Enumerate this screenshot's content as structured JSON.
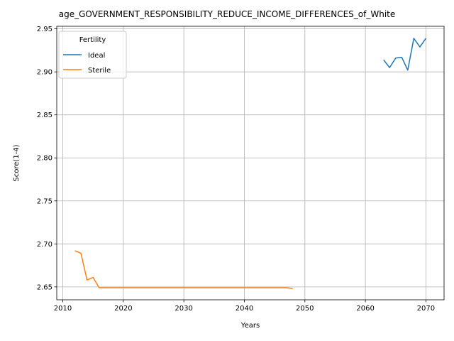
{
  "chart_data": {
    "type": "line",
    "title": "age_GOVERNMENT_RESPONSIBILITY_REDUCE_INCOME_DIFFERENCES_of_White",
    "xlabel": "Years",
    "ylabel": "Score(1-4)",
    "xlim": [
      2009,
      2073
    ],
    "ylim": [
      2.635,
      2.953
    ],
    "xticks": [
      2010,
      2020,
      2030,
      2040,
      2050,
      2060,
      2070
    ],
    "yticks": [
      2.65,
      2.7,
      2.75,
      2.8,
      2.85,
      2.9,
      2.95
    ],
    "ytick_labels": [
      "2.65",
      "2.70",
      "2.75",
      "2.80",
      "2.85",
      "2.90",
      "2.95"
    ],
    "grid": true,
    "legend": {
      "title": "Fertility",
      "placement": "top-left"
    },
    "series": [
      {
        "name": "Ideal",
        "color": "#1f77b4",
        "x": [
          2063,
          2064,
          2065,
          2066,
          2067,
          2068,
          2069,
          2070
        ],
        "y": [
          2.914,
          2.905,
          2.916,
          2.917,
          2.902,
          2.939,
          2.929,
          2.939
        ]
      },
      {
        "name": "Sterile",
        "color": "#ff7f0e",
        "x": [
          2012,
          2013,
          2014,
          2015,
          2016,
          2017,
          2018,
          2019,
          2020,
          2021,
          2022,
          2023,
          2024,
          2025,
          2026,
          2027,
          2028,
          2029,
          2030,
          2031,
          2032,
          2033,
          2034,
          2035,
          2036,
          2037,
          2038,
          2039,
          2040,
          2041,
          2042,
          2043,
          2044,
          2045,
          2046,
          2047,
          2048
        ],
        "y": [
          2.692,
          2.689,
          2.658,
          2.661,
          2.649,
          2.649,
          2.649,
          2.649,
          2.649,
          2.649,
          2.649,
          2.649,
          2.649,
          2.649,
          2.649,
          2.649,
          2.649,
          2.649,
          2.649,
          2.649,
          2.649,
          2.649,
          2.649,
          2.649,
          2.649,
          2.649,
          2.649,
          2.649,
          2.649,
          2.649,
          2.649,
          2.649,
          2.649,
          2.649,
          2.649,
          2.649,
          2.648
        ]
      }
    ]
  }
}
